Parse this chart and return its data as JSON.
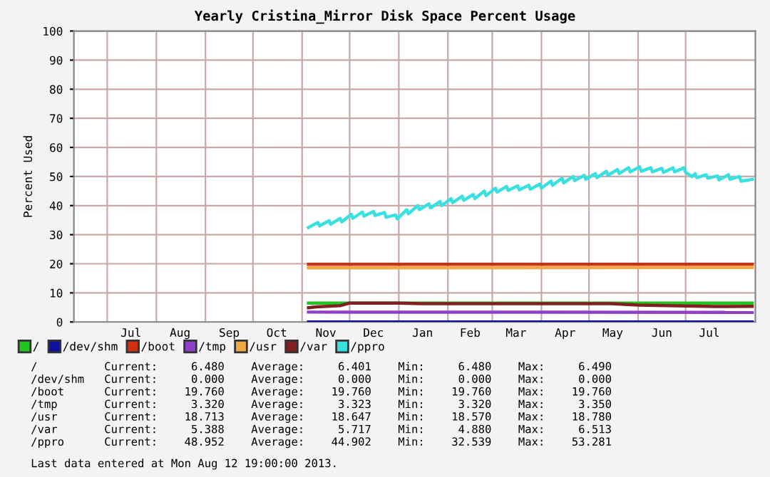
{
  "chart_data": {
    "type": "line",
    "title": "Yearly Cristina_Mirror Disk Space Percent Usage",
    "ylabel": "Percent Used",
    "xlim": [
      "2012-06-10",
      "2013-08-14"
    ],
    "xticks": [
      {
        "value": "2012-07-01",
        "label": null
      },
      {
        "value": "2012-07-16",
        "label": "Jul"
      },
      {
        "value": "2012-08-01",
        "label": null
      },
      {
        "value": "2012-08-16",
        "label": "Aug"
      },
      {
        "value": "2012-09-01",
        "label": null
      },
      {
        "value": "2012-09-16",
        "label": "Sep"
      },
      {
        "value": "2012-10-01",
        "label": null
      },
      {
        "value": "2012-10-16",
        "label": "Oct"
      },
      {
        "value": "2012-11-01",
        "label": null
      },
      {
        "value": "2012-11-16",
        "label": "Nov"
      },
      {
        "value": "2012-12-01",
        "label": null
      },
      {
        "value": "2012-12-16",
        "label": "Dec"
      },
      {
        "value": "2013-01-01",
        "label": null
      },
      {
        "value": "2013-01-16",
        "label": "Jan"
      },
      {
        "value": "2013-02-01",
        "label": null
      },
      {
        "value": "2013-02-15",
        "label": "Feb"
      },
      {
        "value": "2013-03-01",
        "label": null
      },
      {
        "value": "2013-03-16",
        "label": "Mar"
      },
      {
        "value": "2013-04-01",
        "label": null
      },
      {
        "value": "2013-04-16",
        "label": "Apr"
      },
      {
        "value": "2013-05-01",
        "label": null
      },
      {
        "value": "2013-05-16",
        "label": "May"
      },
      {
        "value": "2013-06-01",
        "label": null
      },
      {
        "value": "2013-06-16",
        "label": "Jun"
      },
      {
        "value": "2013-07-01",
        "label": null
      },
      {
        "value": "2013-07-16",
        "label": "Jul"
      }
    ],
    "ylim": [
      0,
      100
    ],
    "yticks": [
      0,
      10,
      20,
      30,
      40,
      50,
      60,
      70,
      80,
      90,
      100
    ],
    "grid": true,
    "legend": "bottom",
    "line_style": "solid",
    "marker": "none",
    "series": [
      {
        "name": "/",
        "color": "#22c322",
        "x": [
          "2012-11-05",
          "2013-08-12"
        ],
        "values": [
          6.5,
          6.5
        ]
      },
      {
        "name": "/dev/shm",
        "color": "#1010a0",
        "x": [
          "2012-11-05",
          "2013-08-12"
        ],
        "values": [
          0,
          0
        ]
      },
      {
        "name": "/boot",
        "color": "#d03010",
        "x": [
          "2012-11-05",
          "2013-08-12"
        ],
        "values": [
          19.8,
          19.8
        ]
      },
      {
        "name": "/tmp",
        "color": "#9040c8",
        "x": [
          "2012-11-05",
          "2013-08-12"
        ],
        "values": [
          3.4,
          3.3
        ]
      },
      {
        "name": "/usr",
        "color": "#f0a848",
        "x": [
          "2012-11-05",
          "2013-08-12"
        ],
        "values": [
          18.6,
          18.7
        ]
      },
      {
        "name": "/var",
        "color": "#802020",
        "x": [
          "2012-11-05",
          "2012-11-10",
          "2012-11-25",
          "2012-12-01",
          "2013-01-01",
          "2013-01-15",
          "2013-02-01",
          "2013-05-15",
          "2013-06-01",
          "2013-07-01",
          "2013-07-20",
          "2013-08-12"
        ],
        "values": [
          4.9,
          5.2,
          5.6,
          6.5,
          6.5,
          6.3,
          6.3,
          6.3,
          5.8,
          5.5,
          5.3,
          5.4
        ]
      },
      {
        "name": "/ppro",
        "color": "#38e0e0",
        "x": [
          "2012-11-05",
          "2012-11-11",
          "2012-11-12",
          "2012-11-18",
          "2012-11-19",
          "2012-11-25",
          "2012-11-26",
          "2012-12-02",
          "2012-12-03",
          "2012-12-09",
          "2012-12-10",
          "2012-12-16",
          "2012-12-17",
          "2012-12-23",
          "2012-12-24",
          "2012-12-30",
          "2012-12-31",
          "2013-01-06",
          "2013-01-07",
          "2013-01-13",
          "2013-01-14",
          "2013-01-20",
          "2013-01-21",
          "2013-01-27",
          "2013-01-28",
          "2013-02-03",
          "2013-02-04",
          "2013-02-10",
          "2013-02-11",
          "2013-02-17",
          "2013-02-18",
          "2013-02-24",
          "2013-02-25",
          "2013-03-03",
          "2013-03-04",
          "2013-03-10",
          "2013-03-11",
          "2013-03-17",
          "2013-03-18",
          "2013-03-24",
          "2013-03-25",
          "2013-03-31",
          "2013-04-01",
          "2013-04-07",
          "2013-04-08",
          "2013-04-14",
          "2013-04-15",
          "2013-04-21",
          "2013-04-22",
          "2013-04-28",
          "2013-04-29",
          "2013-05-05",
          "2013-05-06",
          "2013-05-12",
          "2013-05-13",
          "2013-05-19",
          "2013-05-20",
          "2013-05-26",
          "2013-05-27",
          "2013-06-02",
          "2013-06-03",
          "2013-06-09",
          "2013-06-10",
          "2013-06-16",
          "2013-06-17",
          "2013-06-23",
          "2013-06-24",
          "2013-06-30",
          "2013-07-01",
          "2013-07-05",
          "2013-07-07",
          "2013-07-08",
          "2013-07-14",
          "2013-07-15",
          "2013-07-21",
          "2013-07-22",
          "2013-07-28",
          "2013-07-29",
          "2013-08-04",
          "2013-08-05",
          "2013-08-12"
        ],
        "values": [
          32.5,
          34.2,
          33.0,
          34.8,
          33.6,
          35.6,
          34.4,
          37.0,
          35.6,
          37.8,
          36.4,
          38.0,
          36.6,
          37.6,
          36.0,
          36.8,
          35.4,
          38.6,
          37.2,
          40.0,
          38.6,
          40.6,
          39.2,
          41.4,
          40.0,
          42.4,
          41.0,
          43.2,
          41.8,
          43.8,
          42.4,
          45.0,
          43.4,
          46.0,
          44.6,
          46.6,
          45.2,
          46.8,
          45.4,
          47.0,
          45.6,
          47.4,
          46.0,
          48.4,
          47.0,
          49.4,
          47.8,
          50.0,
          48.6,
          50.4,
          49.0,
          51.0,
          49.6,
          51.8,
          50.4,
          52.4,
          51.0,
          53.0,
          51.6,
          53.3,
          51.8,
          53.0,
          51.6,
          52.8,
          51.4,
          53.0,
          51.6,
          53.0,
          51.4,
          50.0,
          51.0,
          49.6,
          50.6,
          49.4,
          50.2,
          48.8,
          50.6,
          49.0,
          50.0,
          48.4,
          49.0
        ]
      }
    ],
    "annotations": [
      "/          Current:     6.480    Average:     6.401    Min:     6.480    Max:     6.490",
      "/dev/shm   Current:     0.000    Average:     0.000    Min:     0.000    Max:     0.000",
      "/boot      Current:    19.760    Average:    19.760    Min:    19.760    Max:    19.760",
      "/tmp       Current:     3.320    Average:     3.323    Min:     3.320    Max:     3.350",
      "/usr       Current:    18.713    Average:    18.647    Min:    18.570    Max:    18.780",
      "/var       Current:     5.388    Average:     5.717    Min:     4.880    Max:     6.513",
      "/ppro      Current:    48.952    Average:    44.902    Min:    32.539    Max:    53.281",
      "Last data entered at Mon Aug 12 19:00:00 2013."
    ]
  }
}
